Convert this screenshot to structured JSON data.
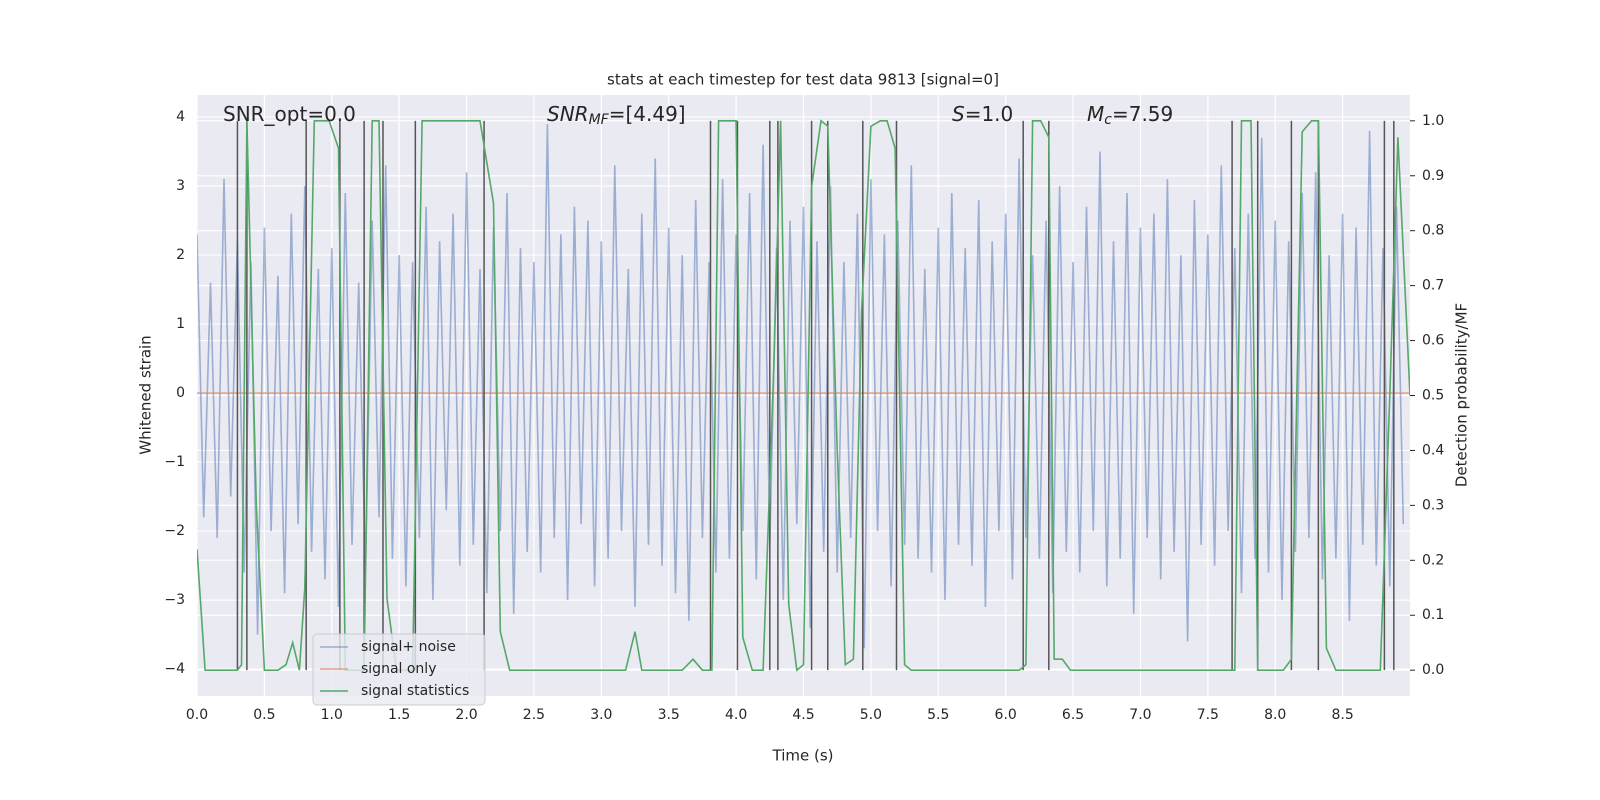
{
  "chart_data": {
    "type": "line",
    "title": "stats at each timestep for test data 9813 [signal=0]",
    "xlabel": "Time (s)",
    "ylabel": "Whitened strain",
    "y2label": "Detection probability/MF",
    "annotations": [
      {
        "text": "SNR_opt=0.0"
      },
      {
        "italic": "SNR",
        "sub": "MF",
        "text": "=[4.49]"
      },
      {
        "italic": "S",
        "text": "=1.0"
      },
      {
        "italic": "M",
        "sub": "c",
        "text": "=7.59"
      }
    ],
    "xlim": [
      0,
      9.0
    ],
    "ylim": [
      -4.39,
      4.32
    ],
    "y2lim": [
      -0.047,
      1.047
    ],
    "xticks": [
      {
        "value": 0,
        "label": "0.0"
      },
      {
        "value": 0.5,
        "label": "0.5"
      },
      {
        "value": 1,
        "label": "1.0"
      },
      {
        "value": 1.5,
        "label": "1.5"
      },
      {
        "value": 2,
        "label": "2.0"
      },
      {
        "value": 2.5,
        "label": "2.5"
      },
      {
        "value": 3,
        "label": "3.0"
      },
      {
        "value": 3.5,
        "label": "3.5"
      },
      {
        "value": 4,
        "label": "4.0"
      },
      {
        "value": 4.5,
        "label": "4.5"
      },
      {
        "value": 5,
        "label": "5.0"
      },
      {
        "value": 5.5,
        "label": "5.5"
      },
      {
        "value": 6,
        "label": "6.0"
      },
      {
        "value": 6.5,
        "label": "6.5"
      },
      {
        "value": 7,
        "label": "7.0"
      },
      {
        "value": 7.5,
        "label": "7.5"
      },
      {
        "value": 8,
        "label": "8.0"
      },
      {
        "value": 8.5,
        "label": "8.5"
      }
    ],
    "yticks": [
      {
        "value": -4,
        "label": "−4"
      },
      {
        "value": -3,
        "label": "−3"
      },
      {
        "value": -2,
        "label": "−2"
      },
      {
        "value": -1,
        "label": "−1"
      },
      0,
      1,
      2,
      3,
      4
    ],
    "y2ticks": [
      {
        "value": 0,
        "label": "0.0"
      },
      {
        "value": 0.1,
        "label": "0.1"
      },
      {
        "value": 0.2,
        "label": "0.2"
      },
      {
        "value": 0.3,
        "label": "0.3"
      },
      {
        "value": 0.4,
        "label": "0.4"
      },
      {
        "value": 0.5,
        "label": "0.5"
      },
      {
        "value": 0.6,
        "label": "0.6"
      },
      {
        "value": 0.7,
        "label": "0.7"
      },
      {
        "value": 0.8,
        "label": "0.8"
      },
      {
        "value": 0.9,
        "label": "0.9"
      },
      {
        "value": 1,
        "label": "1.0"
      }
    ],
    "grid": true,
    "legend": "best",
    "vlines": [
      0.3,
      0.37,
      0.81,
      1.06,
      1.24,
      1.38,
      1.62,
      2.13,
      3.81,
      4.01,
      4.25,
      4.31,
      4.56,
      4.68,
      4.94,
      5.19,
      6.13,
      6.32,
      7.68,
      7.87,
      8.12,
      8.32,
      8.81,
      8.88
    ],
    "vline_color": "#555555",
    "series": [
      {
        "name": "signal+ noise",
        "color": "#4c72b0",
        "opacity": 0.5,
        "x": [
          0.0,
          0.05,
          0.1,
          0.15,
          0.2,
          0.25,
          0.3,
          0.35,
          0.4,
          0.45,
          0.5,
          0.55,
          0.6,
          0.65,
          0.7,
          0.75,
          0.8,
          0.85,
          0.9,
          0.95,
          1.0,
          1.05,
          1.1,
          1.15,
          1.2,
          1.25,
          1.3,
          1.35,
          1.4,
          1.45,
          1.5,
          1.55,
          1.6,
          1.65,
          1.7,
          1.75,
          1.8,
          1.85,
          1.9,
          1.95,
          2.0,
          2.05,
          2.1,
          2.15,
          2.2,
          2.25,
          2.3,
          2.35,
          2.4,
          2.45,
          2.5,
          2.55,
          2.6,
          2.65,
          2.7,
          2.75,
          2.8,
          2.85,
          2.9,
          2.95,
          3.0,
          3.05,
          3.1,
          3.15,
          3.2,
          3.25,
          3.3,
          3.35,
          3.4,
          3.45,
          3.5,
          3.55,
          3.6,
          3.65,
          3.7,
          3.75,
          3.8,
          3.85,
          3.9,
          3.95,
          4.0,
          4.05,
          4.1,
          4.15,
          4.2,
          4.25,
          4.3,
          4.35,
          4.4,
          4.45,
          4.5,
          4.55,
          4.6,
          4.65,
          4.7,
          4.75,
          4.8,
          4.85,
          4.9,
          4.95,
          5.0,
          5.05,
          5.1,
          5.15,
          5.2,
          5.25,
          5.3,
          5.35,
          5.4,
          5.45,
          5.5,
          5.55,
          5.6,
          5.65,
          5.7,
          5.75,
          5.8,
          5.85,
          5.9,
          5.95,
          6.0,
          6.05,
          6.1,
          6.15,
          6.2,
          6.25,
          6.3,
          6.35,
          6.4,
          6.45,
          6.5,
          6.55,
          6.6,
          6.65,
          6.7,
          6.75,
          6.8,
          6.85,
          6.9,
          6.95,
          7.0,
          7.05,
          7.1,
          7.15,
          7.2,
          7.25,
          7.3,
          7.35,
          7.4,
          7.45,
          7.5,
          7.55,
          7.6,
          7.65,
          7.7,
          7.75,
          7.8,
          7.85,
          7.9,
          7.95,
          8.0,
          8.05,
          8.1,
          8.15,
          8.2,
          8.25,
          8.3,
          8.35,
          8.4,
          8.45,
          8.5,
          8.55,
          8.6,
          8.65,
          8.7,
          8.75,
          8.8,
          8.85,
          8.9,
          8.95
        ],
        "values": [
          2.3,
          -1.8,
          1.6,
          -2.1,
          3.1,
          -1.5,
          2.2,
          -2.6,
          1.9,
          -3.5,
          2.4,
          -2.0,
          1.7,
          -2.9,
          2.6,
          -1.9,
          3.0,
          -2.3,
          1.8,
          -2.7,
          2.1,
          -3.1,
          2.9,
          -2.2,
          1.6,
          -2.6,
          2.5,
          -1.8,
          3.3,
          -2.4,
          2.0,
          -2.8,
          1.9,
          -2.1,
          2.7,
          -3.0,
          2.2,
          -1.7,
          2.6,
          -2.5,
          3.2,
          -2.2,
          1.8,
          -2.9,
          2.4,
          -2.0,
          2.9,
          -3.2,
          2.1,
          -2.3,
          1.9,
          -2.6,
          3.9,
          -2.1,
          2.3,
          -3.0,
          2.7,
          -1.9,
          2.5,
          -2.8,
          2.2,
          -2.4,
          3.3,
          -2.0,
          1.8,
          -3.1,
          2.6,
          -2.2,
          3.4,
          -2.5,
          2.4,
          -2.9,
          2.0,
          -3.3,
          2.8,
          -2.1,
          1.9,
          -2.6,
          3.1,
          -2.4,
          2.3,
          -2.0,
          2.9,
          -2.7,
          3.6,
          -2.2,
          2.1,
          -3.0,
          2.5,
          -1.9,
          2.7,
          -3.4,
          2.2,
          -2.3,
          3.0,
          -2.6,
          1.9,
          -2.1,
          2.6,
          -3.7,
          3.1,
          -2.0,
          2.3,
          -2.8,
          2.5,
          -2.2,
          3.3,
          -2.4,
          1.8,
          -2.6,
          2.4,
          -3.0,
          2.9,
          -2.2,
          2.1,
          -2.5,
          2.8,
          -3.1,
          2.2,
          -2.0,
          2.6,
          -2.7,
          3.4,
          -2.1,
          2.0,
          -2.4,
          2.5,
          -2.9,
          3.0,
          -2.3,
          1.9,
          -2.6,
          2.7,
          -2.0,
          3.5,
          -2.8,
          2.2,
          -2.4,
          2.9,
          -3.2,
          2.4,
          -2.1,
          2.6,
          -2.7,
          3.1,
          -2.3,
          2.0,
          -3.6,
          2.8,
          -2.2,
          2.3,
          -2.5,
          3.3,
          -2.0,
          2.1,
          -2.9,
          2.6,
          -2.4,
          3.7,
          -2.6,
          2.5,
          -3.0,
          2.2,
          -2.3,
          2.9,
          -2.1,
          3.2,
          -2.7,
          2.0,
          -2.4,
          2.6,
          -3.3,
          2.4,
          -2.2,
          3.8,
          -2.5,
          2.1,
          -2.8,
          2.7,
          -1.9
        ]
      },
      {
        "name": "signal only",
        "color": "#dd8452",
        "opacity": 0.7,
        "x": [
          0,
          9.0
        ],
        "values": [
          0,
          0
        ]
      },
      {
        "name": "signal statistics",
        "color": "#55a868",
        "opacity": 1,
        "axis": "y2",
        "x": [
          0,
          0.06,
          0.3,
          0.33,
          0.37,
          0.44,
          0.5,
          0.6,
          0.66,
          0.71,
          0.76,
          0.8,
          0.87,
          0.98,
          1.05,
          1.1,
          1.24,
          1.3,
          1.35,
          1.41,
          1.48,
          1.6,
          1.67,
          2.1,
          2.2,
          2.25,
          2.32,
          3.18,
          3.25,
          3.3,
          3.6,
          3.68,
          3.75,
          3.82,
          3.87,
          4.0,
          4.05,
          4.12,
          4.2,
          4.28,
          4.33,
          4.39,
          4.45,
          4.5,
          4.56,
          4.63,
          4.68,
          4.75,
          4.81,
          4.87,
          4.93,
          5.0,
          5.07,
          5.12,
          5.18,
          5.25,
          5.3,
          6.1,
          6.15,
          6.2,
          6.26,
          6.32,
          6.36,
          6.42,
          6.48,
          7.62,
          7.7,
          7.75,
          7.82,
          7.87,
          8.06,
          8.12,
          8.2,
          8.27,
          8.32,
          8.38,
          8.45,
          8.78,
          8.85,
          8.91,
          9.0
        ],
        "values": [
          0.22,
          0.0,
          0.0,
          0.01,
          1.0,
          0.3,
          0.0,
          0.0,
          0.01,
          0.05,
          0.0,
          0.15,
          1.0,
          1.0,
          0.95,
          0.0,
          0.0,
          1.0,
          1.0,
          0.13,
          0.0,
          0.0,
          1.0,
          1.0,
          0.85,
          0.07,
          0.0,
          0.0,
          0.07,
          0.0,
          0.0,
          0.02,
          0.0,
          0.0,
          1.0,
          1.0,
          0.06,
          0.0,
          0.0,
          0.55,
          1.0,
          0.12,
          0.0,
          0.01,
          0.88,
          1.0,
          0.99,
          0.4,
          0.01,
          0.02,
          0.65,
          0.99,
          1.0,
          1.0,
          0.95,
          0.01,
          0.0,
          0.0,
          0.01,
          1.0,
          1.0,
          0.97,
          0.02,
          0.02,
          0.0,
          0.0,
          0.0,
          1.0,
          1.0,
          0.0,
          0.0,
          0.02,
          0.98,
          1.0,
          1.0,
          0.04,
          0.0,
          0.0,
          0.5,
          0.97,
          0.5
        ]
      }
    ]
  }
}
